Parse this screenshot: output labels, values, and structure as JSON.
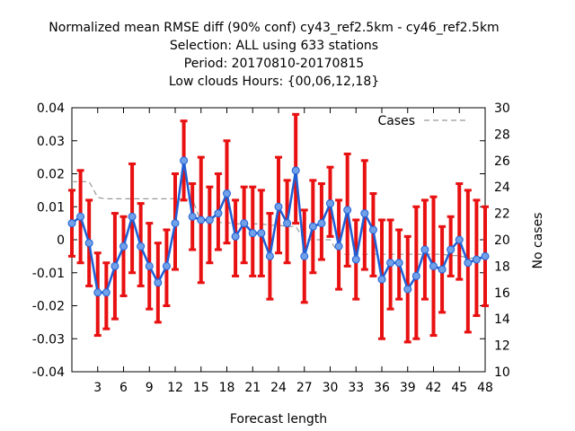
{
  "chart_data": {
    "type": "line",
    "title_lines": [
      "Normalized mean RMSE diff (90% conf) cy43_ref2.5km - cy46_ref2.5km",
      "Selection: ALL using   633 stations",
      "Period: 20170810-20170815",
      "Low clouds   Hours: {00,06,12,18}"
    ],
    "xlabel": "Forecast length",
    "ylabel": "",
    "y2label": "No cases",
    "xlim": [
      0,
      48
    ],
    "ylim": [
      -0.04,
      0.04
    ],
    "y2lim": [
      10,
      30
    ],
    "xticks": [
      3,
      6,
      9,
      12,
      15,
      18,
      21,
      24,
      27,
      30,
      33,
      36,
      39,
      42,
      45,
      48
    ],
    "yticks": [
      -0.04,
      -0.03,
      -0.02,
      -0.01,
      0,
      0.01,
      0.02,
      0.03,
      0.04
    ],
    "yticklabels": [
      "-0.04",
      "-0.03",
      "-0.02",
      "-0.01",
      "0",
      "0.01",
      "0.02",
      "0.03",
      "0.04"
    ],
    "y2ticks": [
      10,
      12,
      14,
      16,
      18,
      20,
      22,
      24,
      26,
      28,
      30
    ],
    "legend": {
      "label": "Cases",
      "position": "top-right"
    },
    "grid": false,
    "colors": {
      "line": "#1f5fd6",
      "marker": "#6fa0e8",
      "errorbar": "#e81010",
      "cases": "#999999"
    },
    "series": [
      {
        "x": [
          0,
          1,
          2,
          3,
          4,
          5,
          6,
          7,
          8,
          9,
          10,
          11,
          12,
          13,
          14,
          15,
          16,
          17,
          18,
          19,
          20,
          21,
          22,
          23,
          24,
          25,
          26,
          27,
          28,
          29,
          30,
          31,
          32,
          33,
          34,
          35,
          36,
          37,
          38,
          39,
          40,
          41,
          42,
          43,
          44,
          45,
          46,
          47,
          48
        ],
        "values": [
          0.005,
          0.007,
          -0.001,
          -0.016,
          -0.016,
          -0.008,
          -0.002,
          0.007,
          -0.002,
          -0.008,
          -0.013,
          -0.008,
          0.005,
          0.024,
          0.007,
          0.006,
          0.006,
          0.008,
          0.014,
          0.001,
          0.005,
          0.002,
          0.002,
          -0.005,
          0.01,
          0.005,
          0.021,
          -0.005,
          0.004,
          0.005,
          0.011,
          -0.002,
          0.009,
          -0.006,
          0.008,
          0.003,
          -0.012,
          -0.007,
          -0.007,
          -0.015,
          -0.011,
          -0.003,
          -0.008,
          -0.009,
          -0.003,
          0.0,
          -0.007,
          -0.006,
          -0.005
        ],
        "error_low": [
          -0.005,
          -0.007,
          -0.014,
          -0.029,
          -0.027,
          -0.024,
          -0.017,
          -0.01,
          -0.014,
          -0.021,
          -0.025,
          -0.02,
          -0.009,
          0.012,
          -0.003,
          -0.013,
          -0.007,
          -0.003,
          -0.001,
          -0.011,
          -0.007,
          -0.011,
          -0.011,
          -0.018,
          -0.004,
          -0.007,
          0.005,
          -0.019,
          -0.01,
          -0.006,
          0.001,
          -0.015,
          -0.008,
          -0.018,
          -0.009,
          -0.011,
          -0.03,
          -0.021,
          -0.018,
          -0.031,
          -0.03,
          -0.018,
          -0.029,
          -0.022,
          -0.011,
          -0.012,
          -0.028,
          -0.023,
          -0.02
        ],
        "error_high": [
          0.015,
          0.021,
          0.012,
          -0.004,
          -0.007,
          0.008,
          0.007,
          0.023,
          0.011,
          0.005,
          -0.001,
          0.003,
          0.02,
          0.036,
          0.017,
          0.025,
          0.016,
          0.02,
          0.03,
          0.012,
          0.016,
          0.016,
          0.015,
          0.008,
          0.025,
          0.018,
          0.038,
          0.009,
          0.018,
          0.017,
          0.022,
          0.012,
          0.026,
          0.006,
          0.024,
          0.014,
          0.006,
          0.006,
          0.003,
          0.001,
          0.01,
          0.012,
          0.013,
          0.004,
          0.007,
          0.017,
          0.015,
          0.012,
          0.01
        ]
      },
      {
        "legend": "Cases",
        "x": [
          0,
          1,
          2,
          3,
          4,
          5,
          6,
          7,
          8,
          9,
          10,
          11,
          12,
          13,
          14,
          15,
          16,
          17,
          18,
          19,
          20,
          21,
          22,
          23,
          24,
          25,
          26,
          27,
          28,
          29,
          30,
          31,
          32,
          33,
          34,
          35,
          36,
          37,
          38,
          39,
          40,
          41,
          42,
          43,
          44,
          45,
          46,
          47,
          48
        ],
        "values": [
          24.4,
          24.4,
          24.4,
          23.2,
          23.1,
          23.1,
          23.1,
          23.1,
          23.1,
          23.1,
          23.1,
          23.1,
          23.1,
          23.1,
          23.1,
          21.3,
          21.3,
          21.3,
          21.3,
          21.2,
          21.2,
          21.2,
          21.2,
          21.1,
          21.1,
          21.0,
          21.0,
          20.0,
          20.0,
          20.0,
          20.0,
          18.9,
          18.9,
          18.9,
          18.9,
          18.9,
          18.9,
          18.9,
          18.9,
          18.9,
          18.9,
          18.9,
          18.9,
          18.9,
          18.8,
          18.8,
          18.6,
          18.6,
          18.6
        ]
      }
    ]
  }
}
